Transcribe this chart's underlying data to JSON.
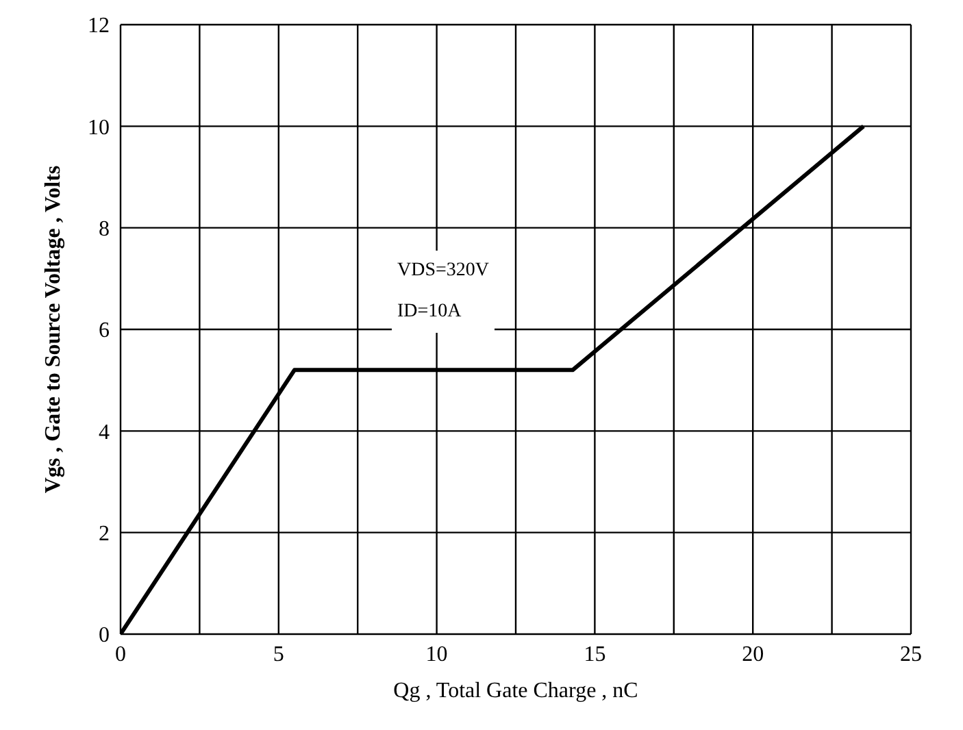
{
  "chart_data": {
    "type": "line",
    "xlabel": "Qg , Total Gate Charge , nC",
    "ylabel": "Vgs , Gate to Source Voltage , Volts",
    "annotations": [
      "VDS=320V",
      "ID=10A"
    ],
    "x": [
      0,
      5.5,
      14.3,
      23.5
    ],
    "series": [
      {
        "color": "#000000",
        "values": [
          0,
          5.2,
          5.2,
          10
        ]
      }
    ],
    "xlim": [
      0,
      25
    ],
    "xticks": [
      0,
      {
        "value": 2.5,
        "label": null
      },
      5,
      {
        "value": 7.5,
        "label": null
      },
      10,
      {
        "value": 12.5,
        "label": null
      },
      15,
      {
        "value": 17.5,
        "label": null
      },
      20,
      {
        "value": 22.5,
        "label": null
      },
      25
    ],
    "ylim": [
      0,
      12
    ],
    "yticks": [
      0,
      2,
      4,
      6,
      8,
      10,
      12
    ],
    "grid": true,
    "legend": false,
    "marker": "none",
    "line_style": "solid"
  }
}
